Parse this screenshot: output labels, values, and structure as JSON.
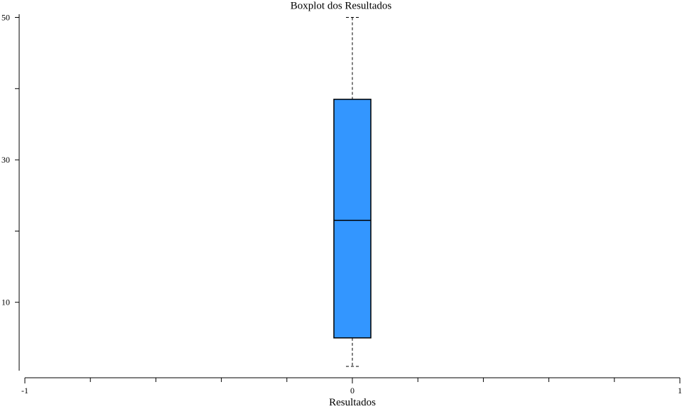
{
  "chart_data": {
    "type": "boxplot",
    "title": "Boxplot dos Resultados",
    "xlabel": "Resultados",
    "ylabel": "",
    "x_categories": [
      0
    ],
    "xlim": [
      -1,
      1
    ],
    "x_ticks": [
      -1,
      0,
      1
    ],
    "x_minor_ticks": [
      -0.8,
      -0.6,
      -0.4,
      -0.2,
      0.2,
      0.4,
      0.6,
      0.8
    ],
    "ylim": [
      0,
      50
    ],
    "y_ticks": [
      10,
      30,
      50
    ],
    "y_minor_ticks": [
      20,
      40
    ],
    "box_color": "#3396ff",
    "boxes": [
      {
        "x": 0,
        "whisker_low": 1,
        "q1": 5,
        "median": 21.5,
        "q3": 38.5,
        "whisker_high": 50
      }
    ],
    "grid": false,
    "legend": "none"
  }
}
